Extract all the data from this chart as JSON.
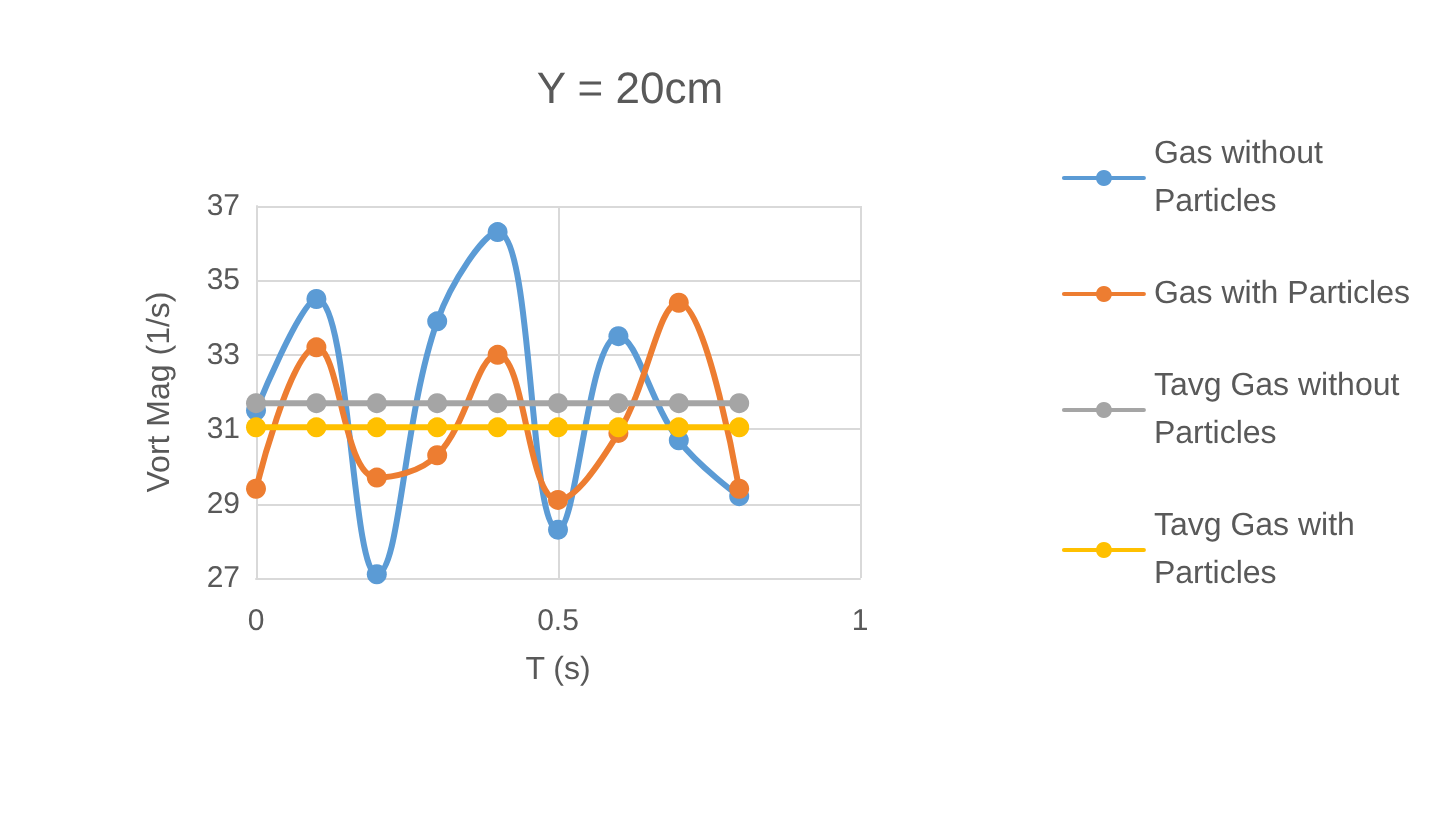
{
  "chart_data": {
    "type": "line",
    "title": "Y = 20cm",
    "xlabel": "T (s)",
    "ylabel": "Vort Mag (1/s)",
    "x": [
      0,
      0.1,
      0.2,
      0.3,
      0.4,
      0.5,
      0.6,
      0.7,
      0.8
    ],
    "series": [
      {
        "name": " Gas without Particles",
        "color": "#5b9bd5",
        "values": [
          31.5,
          34.5,
          27.1,
          33.9,
          36.3,
          28.3,
          33.5,
          30.7,
          29.2
        ]
      },
      {
        "name": "Gas with Particles",
        "color": "#ed7d31",
        "values": [
          29.4,
          33.2,
          29.7,
          30.3,
          33.0,
          29.1,
          30.9,
          34.4,
          29.4
        ]
      },
      {
        "name": "Tavg Gas without Particles",
        "color": "#a5a5a5",
        "values": [
          31.7,
          31.7,
          31.7,
          31.7,
          31.7,
          31.7,
          31.7,
          31.7,
          31.7
        ]
      },
      {
        "name": "Tavg Gas with Particles",
        "color": "#ffc000",
        "values": [
          31.05,
          31.05,
          31.05,
          31.05,
          31.05,
          31.05,
          31.05,
          31.05,
          31.05
        ]
      }
    ],
    "xlim": [
      0,
      1
    ],
    "xticks": [
      0,
      0.5,
      1
    ],
    "ylim": [
      27,
      37
    ],
    "yticks": [
      27,
      29,
      31,
      33,
      35,
      37
    ],
    "grid": true,
    "legend": "right",
    "marker": "circle",
    "line_style": "solid"
  }
}
